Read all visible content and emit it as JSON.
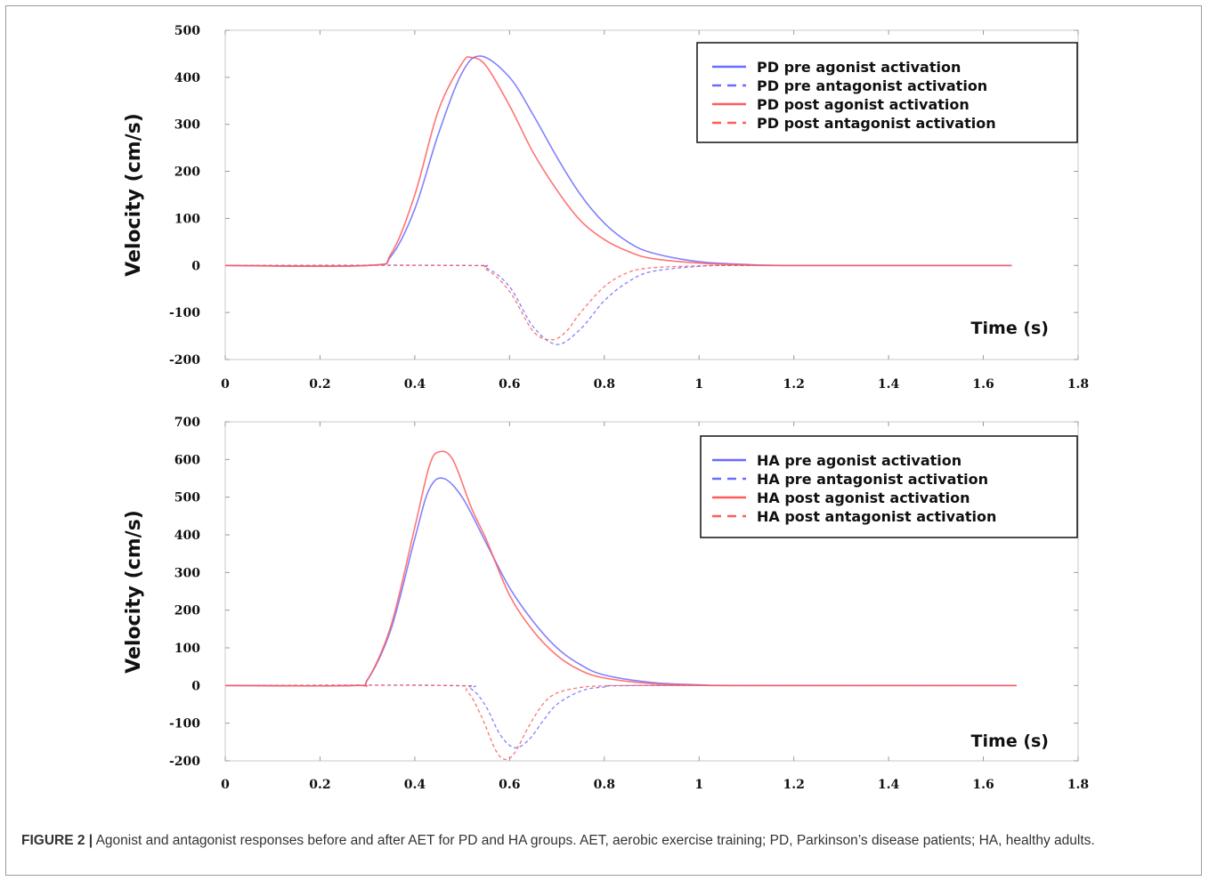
{
  "caption": {
    "label": "FIGURE 2 |",
    "text": "Agonist and antagonist responses before and after AET for PD and HA groups. AET, aerobic exercise training; PD, Parkinson’s disease patients; HA, healthy adults."
  },
  "colors": {
    "pre": "#6b6bff",
    "post": "#ff5c5c"
  },
  "chart_data": [
    {
      "type": "line",
      "title": "",
      "xlabel": "Time (s)",
      "ylabel": "Velocity (cm/s)",
      "xlim": [
        0,
        1.8
      ],
      "ylim": [
        -200,
        500
      ],
      "xticks": [
        0,
        0.2,
        0.4,
        0.6,
        0.8,
        1,
        1.2,
        1.4,
        1.6,
        1.8
      ],
      "xtick_labels": [
        "0",
        "0.2",
        "0.4",
        "0.6",
        "0.8",
        "1",
        "1.2",
        "1.4",
        "1.6",
        "1.8"
      ],
      "yticks": [
        -200,
        -100,
        0,
        100,
        200,
        300,
        400,
        500
      ],
      "ytick_labels": [
        "-200",
        "-100",
        "0",
        "100",
        "200",
        "300",
        "400",
        "500"
      ],
      "legend_position": "top-right",
      "series": [
        {
          "name": "PD pre agonist activation",
          "color": "#6b6bff",
          "dash": "solid",
          "x": [
            0,
            0.3,
            0.35,
            0.4,
            0.45,
            0.5,
            0.54,
            0.6,
            0.65,
            0.7,
            0.75,
            0.8,
            0.85,
            0.9,
            1.0,
            1.1,
            1.2,
            1.66
          ],
          "y": [
            0,
            0,
            20,
            120,
            280,
            410,
            445,
            400,
            320,
            230,
            150,
            90,
            50,
            27,
            8,
            2,
            0,
            0
          ]
        },
        {
          "name": "PD pre antagonist activation",
          "color": "#6b6bff",
          "dash": "dashed",
          "x": [
            0,
            0.5,
            0.55,
            0.6,
            0.65,
            0.7,
            0.75,
            0.8,
            0.85,
            0.9,
            1.0,
            1.1,
            1.66
          ],
          "y": [
            0,
            0,
            -5,
            -45,
            -130,
            -168,
            -135,
            -75,
            -35,
            -13,
            -2,
            0,
            0
          ]
        },
        {
          "name": "PD post agonist activation",
          "color": "#ff5c5c",
          "dash": "solid",
          "x": [
            0,
            0.3,
            0.35,
            0.4,
            0.45,
            0.5,
            0.52,
            0.55,
            0.6,
            0.65,
            0.7,
            0.75,
            0.8,
            0.85,
            0.9,
            1.0,
            1.1,
            1.2,
            1.66
          ],
          "y": [
            0,
            0,
            25,
            150,
            330,
            430,
            442,
            425,
            340,
            240,
            160,
            95,
            55,
            30,
            15,
            5,
            1,
            0,
            0
          ]
        },
        {
          "name": "PD post antagonist activation",
          "color": "#ff5c5c",
          "dash": "dashed",
          "x": [
            0,
            0.5,
            0.55,
            0.6,
            0.65,
            0.69,
            0.72,
            0.75,
            0.8,
            0.85,
            0.9,
            1.0,
            1.1,
            1.66
          ],
          "y": [
            0,
            0,
            -8,
            -55,
            -140,
            -158,
            -140,
            -100,
            -45,
            -15,
            -5,
            -1,
            0,
            0
          ]
        }
      ]
    },
    {
      "type": "line",
      "title": "",
      "xlabel": "Time (s)",
      "ylabel": "Velocity (cm/s)",
      "xlim": [
        0,
        1.8
      ],
      "ylim": [
        -200,
        700
      ],
      "xticks": [
        0,
        0.2,
        0.4,
        0.6,
        0.8,
        1,
        1.2,
        1.4,
        1.6,
        1.8
      ],
      "xtick_labels": [
        "0",
        "0.2",
        "0.4",
        "0.6",
        "0.8",
        "1",
        "1.2",
        "1.4",
        "1.6",
        "1.8"
      ],
      "yticks": [
        -200,
        -100,
        0,
        100,
        200,
        300,
        400,
        500,
        600,
        700
      ],
      "ytick_labels": [
        "-200",
        "-100",
        "0",
        "100",
        "200",
        "300",
        "400",
        "500",
        "600",
        "700"
      ],
      "legend_position": "top-right",
      "series": [
        {
          "name": "HA pre agonist activation",
          "color": "#6b6bff",
          "dash": "solid",
          "x": [
            0,
            0.27,
            0.3,
            0.35,
            0.4,
            0.43,
            0.46,
            0.5,
            0.55,
            0.6,
            0.65,
            0.7,
            0.75,
            0.8,
            0.9,
            1.0,
            1.1,
            1.67
          ],
          "y": [
            0,
            0,
            15,
            150,
            390,
            520,
            550,
            500,
            380,
            260,
            170,
            100,
            55,
            28,
            8,
            2,
            0,
            0
          ]
        },
        {
          "name": "HA pre antagonist activation",
          "color": "#6b6bff",
          "dash": "dashed",
          "x": [
            0,
            0.48,
            0.52,
            0.55,
            0.58,
            0.61,
            0.64,
            0.67,
            0.7,
            0.75,
            0.8,
            0.9,
            1.67
          ],
          "y": [
            0,
            0,
            -10,
            -55,
            -130,
            -165,
            -145,
            -95,
            -50,
            -15,
            -4,
            0,
            0
          ]
        },
        {
          "name": "HA post agonist activation",
          "color": "#ff5c5c",
          "dash": "solid",
          "x": [
            0,
            0.27,
            0.3,
            0.35,
            0.4,
            0.43,
            0.45,
            0.48,
            0.52,
            0.55,
            0.6,
            0.65,
            0.7,
            0.75,
            0.8,
            0.9,
            1.0,
            1.1,
            1.67
          ],
          "y": [
            0,
            0,
            15,
            160,
            420,
            580,
            620,
            600,
            470,
            390,
            240,
            145,
            80,
            40,
            20,
            5,
            1,
            0,
            0
          ]
        },
        {
          "name": "HA post antagonist activation",
          "color": "#ff5c5c",
          "dash": "dashed",
          "x": [
            0,
            0.47,
            0.51,
            0.54,
            0.57,
            0.59,
            0.61,
            0.64,
            0.67,
            0.7,
            0.75,
            0.8,
            0.9,
            1.67
          ],
          "y": [
            0,
            0,
            -15,
            -80,
            -170,
            -196,
            -180,
            -110,
            -50,
            -20,
            -5,
            -1,
            0,
            0
          ]
        }
      ]
    }
  ]
}
